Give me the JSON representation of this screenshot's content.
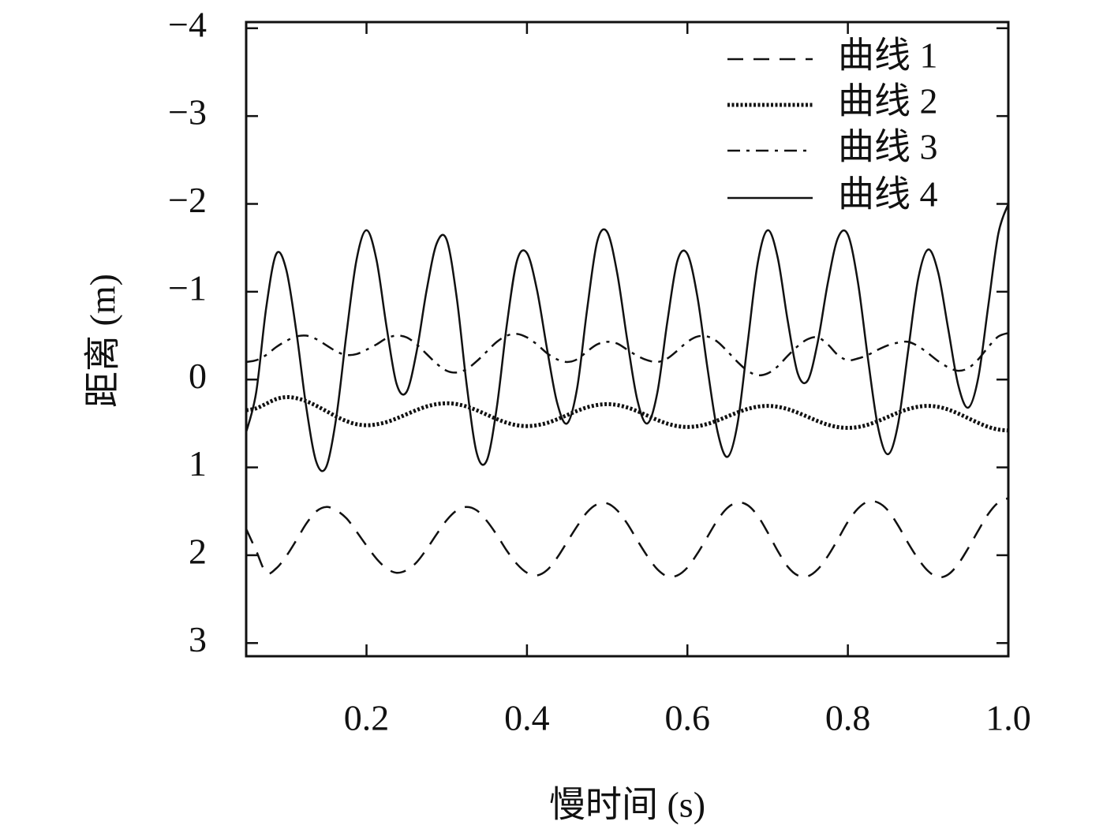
{
  "chart_data": {
    "type": "line",
    "x_label": "慢时间 (s)",
    "y_label": "距离 (m)",
    "xlim": [
      0.05,
      1.0
    ],
    "ylim": [
      -4.07,
      3.15
    ],
    "y_inverted": true,
    "xticks": [
      0.2,
      0.4,
      0.6,
      0.8,
      {
        "value": 1,
        "label": "1.0"
      }
    ],
    "yticks": [
      {
        "value": -4,
        "label": "−4"
      },
      {
        "value": -3,
        "label": "−3"
      },
      {
        "value": -2,
        "label": "−2"
      },
      {
        "value": -1,
        "label": "−1"
      },
      0,
      1,
      2,
      3
    ],
    "legend": "upper right",
    "x": [
      0.05,
      0.0625,
      0.075,
      0.0875,
      0.1,
      0.1125,
      0.125,
      0.1375,
      0.15,
      0.1625,
      0.175,
      0.1875,
      0.2,
      0.2125,
      0.225,
      0.2375,
      0.25,
      0.2625,
      0.275,
      0.2875,
      0.3,
      0.3125,
      0.325,
      0.3375,
      0.35,
      0.3625,
      0.375,
      0.3875,
      0.4,
      0.4125,
      0.425,
      0.4375,
      0.45,
      0.4625,
      0.475,
      0.4875,
      0.5,
      0.5125,
      0.525,
      0.5375,
      0.55,
      0.5625,
      0.575,
      0.5875,
      0.6,
      0.6125,
      0.625,
      0.6375,
      0.65,
      0.6625,
      0.675,
      0.6875,
      0.7,
      0.7125,
      0.725,
      0.7375,
      0.75,
      0.7625,
      0.775,
      0.7875,
      0.8,
      0.8125,
      0.825,
      0.8375,
      0.85,
      0.8625,
      0.875,
      0.8875,
      0.9,
      0.9125,
      0.925,
      0.9375,
      0.95,
      0.9625,
      0.975,
      0.9875,
      1.0
    ],
    "series": [
      {
        "name": "曲线 1",
        "color": "#111111",
        "linestyle": "dashed",
        "values": [
          1.7,
          1.95,
          2.2,
          2.15,
          2.01,
          1.83,
          1.64,
          1.5,
          1.45,
          1.49,
          1.58,
          1.73,
          1.89,
          2.04,
          2.15,
          2.2,
          2.17,
          2.08,
          1.93,
          1.76,
          1.6,
          1.49,
          1.45,
          1.49,
          1.61,
          1.77,
          1.95,
          2.1,
          2.2,
          2.23,
          2.17,
          2.03,
          1.85,
          1.67,
          1.51,
          1.42,
          1.41,
          1.49,
          1.64,
          1.83,
          2.01,
          2.16,
          2.24,
          2.23,
          2.14,
          1.98,
          1.79,
          1.6,
          1.46,
          1.4,
          1.43,
          1.55,
          1.74,
          1.95,
          2.13,
          2.23,
          2.24,
          2.16,
          2.01,
          1.82,
          1.62,
          1.47,
          1.39,
          1.4,
          1.49,
          1.66,
          1.86,
          2.04,
          2.18,
          2.25,
          2.22,
          2.1,
          1.92,
          1.72,
          1.53,
          1.4,
          1.35
        ]
      },
      {
        "name": "曲线 2",
        "color": "#111111",
        "linestyle": "dotted",
        "values": [
          0.35,
          0.328,
          0.275,
          0.222,
          0.2,
          0.212,
          0.247,
          0.299,
          0.36,
          0.421,
          0.473,
          0.508,
          0.52,
          0.51,
          0.484,
          0.443,
          0.395,
          0.347,
          0.306,
          0.28,
          0.27,
          0.28,
          0.308,
          0.35,
          0.4,
          0.45,
          0.492,
          0.52,
          0.53,
          0.52,
          0.494,
          0.453,
          0.405,
          0.357,
          0.316,
          0.29,
          0.28,
          0.29,
          0.318,
          0.36,
          0.41,
          0.46,
          0.502,
          0.53,
          0.54,
          0.531,
          0.505,
          0.466,
          0.42,
          0.374,
          0.335,
          0.309,
          0.3,
          0.31,
          0.337,
          0.377,
          0.425,
          0.473,
          0.514,
          0.541,
          0.55,
          0.541,
          0.514,
          0.473,
          0.425,
          0.377,
          0.337,
          0.31,
          0.3,
          0.311,
          0.341,
          0.387,
          0.44,
          0.493,
          0.539,
          0.569,
          0.58
        ]
      },
      {
        "name": "曲线 3",
        "color": "#111111",
        "linestyle": "dashdot",
        "values": [
          -0.2,
          -0.22,
          -0.28,
          -0.37,
          -0.44,
          -0.49,
          -0.5,
          -0.46,
          -0.39,
          -0.32,
          -0.28,
          -0.29,
          -0.34,
          -0.4,
          -0.47,
          -0.5,
          -0.48,
          -0.4,
          -0.29,
          -0.18,
          -0.1,
          -0.08,
          -0.12,
          -0.21,
          -0.32,
          -0.43,
          -0.5,
          -0.52,
          -0.48,
          -0.4,
          -0.3,
          -0.23,
          -0.2,
          -0.23,
          -0.32,
          -0.4,
          -0.43,
          -0.41,
          -0.34,
          -0.27,
          -0.22,
          -0.2,
          -0.24,
          -0.33,
          -0.43,
          -0.49,
          -0.49,
          -0.43,
          -0.32,
          -0.2,
          -0.1,
          -0.05,
          -0.07,
          -0.15,
          -0.27,
          -0.38,
          -0.46,
          -0.48,
          -0.4,
          -0.28,
          -0.22,
          -0.24,
          -0.28,
          -0.34,
          -0.39,
          -0.42,
          -0.43,
          -0.38,
          -0.3,
          -0.21,
          -0.14,
          -0.1,
          -0.13,
          -0.23,
          -0.37,
          -0.49,
          -0.53
        ]
      },
      {
        "name": "曲线 4",
        "color": "#111111",
        "linestyle": "solid",
        "values": [
          0.6,
          0.145,
          -0.82,
          -1.43,
          -1.25,
          -0.55,
          0.32,
          0.94,
          0.99,
          0.42,
          -0.52,
          -1.36,
          -1.7,
          -1.36,
          -0.6,
          0.05,
          0.14,
          -0.32,
          -1.02,
          -1.55,
          -1.59,
          -0.93,
          0.07,
          0.84,
          0.92,
          0.31,
          -0.63,
          -1.35,
          -1.44,
          -1.02,
          -0.35,
          0.26,
          0.5,
          0.1,
          -0.8,
          -1.57,
          -1.68,
          -1.21,
          -0.45,
          0.23,
          0.5,
          0.15,
          -0.66,
          -1.35,
          -1.43,
          -0.94,
          -0.13,
          0.59,
          0.88,
          0.5,
          -0.41,
          -1.32,
          -1.7,
          -1.39,
          -0.67,
          -0.07,
          0.01,
          -0.43,
          -1.1,
          -1.61,
          -1.65,
          -1.11,
          -0.24,
          0.54,
          0.85,
          0.51,
          -0.32,
          -1.14,
          -1.48,
          -1.22,
          -0.58,
          0.06,
          0.32,
          -0.02,
          -0.84,
          -1.66,
          -2.0
        ]
      }
    ]
  }
}
